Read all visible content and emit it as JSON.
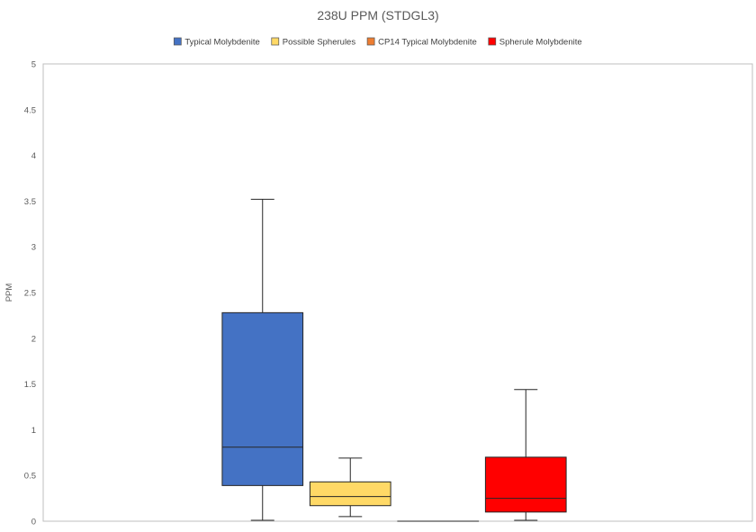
{
  "chart_data": {
    "type": "box",
    "title": "238U PPM (STDGL3)",
    "ylabel": "PPM",
    "xlabel": "",
    "ylim": [
      0,
      5
    ],
    "yticks": [
      "0",
      "0.5",
      "1",
      "1.5",
      "2",
      "2.5",
      "3",
      "3.5",
      "4",
      "4.5",
      "5"
    ],
    "grid": false,
    "legend_position": "top-center",
    "series": [
      {
        "name": "Typical Molybdenite",
        "color": "#4472C4",
        "min": 0.01,
        "q1": 0.39,
        "median": 0.81,
        "q3": 2.28,
        "max": 3.52
      },
      {
        "name": "Possible Spherules",
        "color": "#FFD966",
        "min": 0.05,
        "q1": 0.17,
        "median": 0.27,
        "q3": 0.43,
        "max": 0.69
      },
      {
        "name": "CP14 Typical Molybdenite",
        "color": "#ED7D31",
        "min": 0.0,
        "q1": 0.0,
        "median": 0.0,
        "q3": 0.0,
        "max": 0.0
      },
      {
        "name": "Spherule Molybdenite",
        "color": "#FF0000",
        "min": 0.01,
        "q1": 0.1,
        "median": 0.25,
        "q3": 0.7,
        "max": 1.44
      }
    ]
  }
}
